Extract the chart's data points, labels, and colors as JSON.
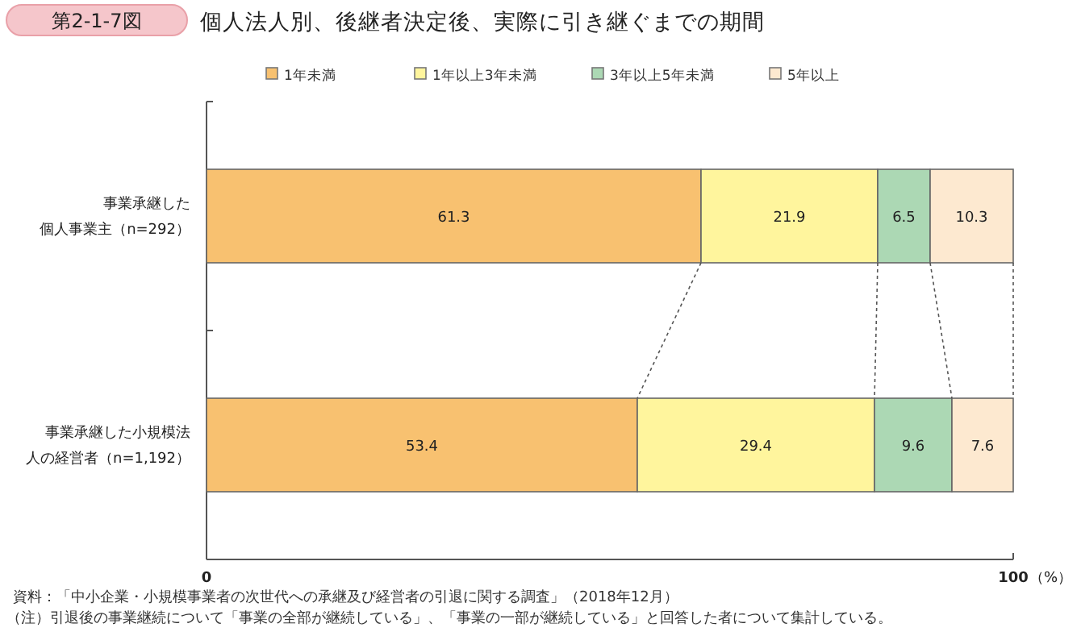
{
  "chart_data": {
    "type": "bar",
    "orientation": "horizontal",
    "stacked": true,
    "title": "個人法人別、後継者決定後、実際に引き継ぐまでの期間",
    "categories": [
      "事業承継した個人事業主（n=292）",
      "事業承継した小規模法人の経営者（n=1,192）"
    ],
    "series": [
      {
        "name": "1年未満",
        "color": "#f8c170",
        "values": [
          61.3,
          53.4
        ]
      },
      {
        "name": "1年以上3年未満",
        "color": "#fff59d",
        "values": [
          21.9,
          29.4
        ]
      },
      {
        "name": "3年以上5年未満",
        "color": "#acd8b4",
        "values": [
          6.5,
          9.6
        ]
      },
      {
        "name": "5年以上",
        "color": "#fde9d0",
        "values": [
          10.3,
          7.6
        ]
      }
    ],
    "xlim": [
      0,
      100
    ],
    "xticks": [
      0,
      100
    ],
    "xlabel": "（%）",
    "data_labels": true,
    "legend": "top",
    "grid": false,
    "annotations": [
      "第2-1-7図",
      "資料：「中小企業・小規模事業者の次世代への承継及び経営者の引退に関する調査」（2018年12月）",
      "（注）引退後の事業継続について「事業の全部が継続している」、「事業の一部が継続している」と回答した者について集計している。"
    ]
  }
}
